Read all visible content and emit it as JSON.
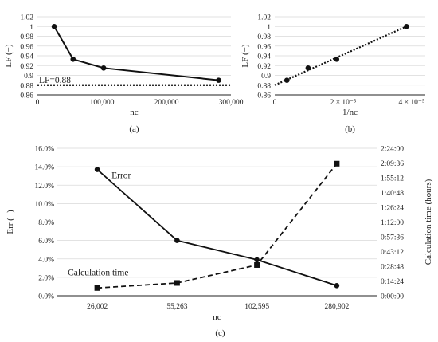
{
  "chart_data": [
    {
      "type": "line",
      "panel_label": "(a)",
      "xlabel": "nc",
      "ylabel": "LF (−)",
      "xlim": [
        0,
        300000
      ],
      "ylim": [
        0.86,
        1.02
      ],
      "x_ticks": [
        0,
        100000,
        200000,
        300000
      ],
      "x_tick_labels": [
        "0",
        "100,000",
        "200,000",
        "300,000"
      ],
      "y_ticks": [
        0.86,
        0.88,
        0.9,
        0.92,
        0.94,
        0.96,
        0.98,
        1.0,
        1.02
      ],
      "y_tick_labels": [
        "0.86",
        "0.88",
        "0.9",
        "0.92",
        "0.94",
        "0.96",
        "0.98",
        "1",
        "1.02"
      ],
      "grid": "horizontal",
      "series": [
        {
          "x": [
            26002,
            55263,
            102595,
            280902
          ],
          "y": [
            1.0,
            0.933,
            0.915,
            0.89
          ]
        }
      ],
      "reference_line": {
        "y": 0.88,
        "label": "LF=0.88"
      }
    },
    {
      "type": "scatter",
      "panel_label": "(b)",
      "xlabel": "1/nc",
      "ylabel": "LF (−)",
      "xlim": [
        0,
        4.4e-05
      ],
      "ylim": [
        0.86,
        1.02
      ],
      "x_ticks": [
        0,
        2e-05,
        4e-05
      ],
      "x_tick_labels": [
        "0",
        "2 × 10⁻⁵",
        "4 × 10⁻⁵"
      ],
      "y_ticks": [
        0.86,
        0.88,
        0.9,
        0.92,
        0.94,
        0.96,
        0.98,
        1.0,
        1.02
      ],
      "y_tick_labels": [
        "0.86",
        "0.88",
        "0.9",
        "0.92",
        "0.94",
        "0.96",
        "0.98",
        "1",
        "1.02"
      ],
      "grid": "horizontal",
      "series": [
        {
          "x": [
            3.56e-06,
            9.75e-06,
            1.81e-05,
            3.85e-05
          ],
          "y": [
            0.89,
            0.915,
            0.933,
            1.0
          ]
        }
      ],
      "trendline": {
        "x": [
          0,
          3.85e-05
        ],
        "y": [
          0.88,
          1.0
        ]
      }
    },
    {
      "type": "line",
      "panel_label": "(c)",
      "xlabel": "nc",
      "ylabel": "Err (−)",
      "y2label": "Calculation time (hours)",
      "categories": [
        "26,002",
        "55,263",
        "102,595",
        "280,902"
      ],
      "ylim": [
        0,
        0.16
      ],
      "y_ticks": [
        0,
        0.02,
        0.04,
        0.06,
        0.08,
        0.1,
        0.12,
        0.14,
        0.16
      ],
      "y_tick_labels": [
        "0.0%",
        "2.0%",
        "4.0%",
        "6.0%",
        "8.0%",
        "10.0%",
        "12.0%",
        "14.0%",
        "16.0%"
      ],
      "y2lim_hours": [
        0,
        2.4
      ],
      "y2_ticks_hours": [
        0,
        0.24,
        0.48,
        0.72,
        0.96,
        1.2,
        1.44,
        1.68,
        1.92,
        2.16,
        2.4
      ],
      "y2_tick_labels": [
        "0:00:00",
        "0:14:24",
        "0:28:48",
        "0:43:12",
        "0:57:36",
        "1:12:00",
        "1:26:24",
        "1:40:48",
        "1:55:12",
        "2:09:36",
        "2:24:00"
      ],
      "grid": "horizontal",
      "series": [
        {
          "name": "Error",
          "axis": "left",
          "style": "solid",
          "marker": "circle",
          "values": [
            0.137,
            0.06,
            0.039,
            0.011
          ]
        },
        {
          "name": "Calculation time",
          "axis": "right",
          "style": "dashed",
          "marker": "square",
          "values_hours": [
            0.126,
            0.208,
            0.5,
            2.15
          ]
        }
      ]
    }
  ]
}
